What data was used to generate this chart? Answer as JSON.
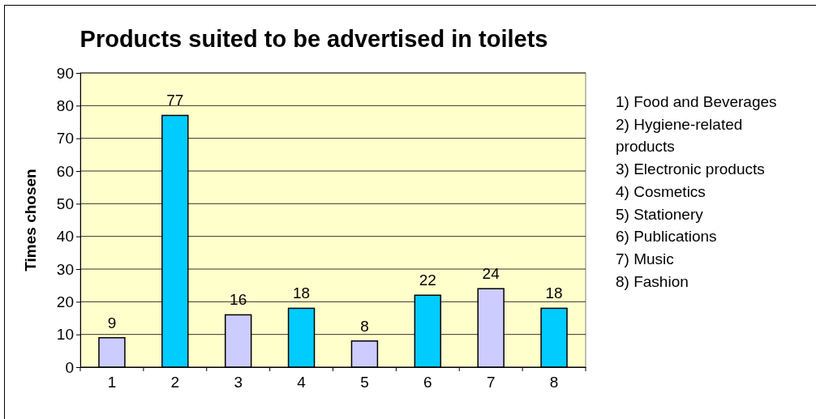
{
  "chart_data": {
    "type": "bar",
    "title": "Products suited to be advertised in toilets",
    "ylabel": "Times chosen",
    "categories": [
      "1",
      "2",
      "3",
      "4",
      "5",
      "6",
      "7",
      "8"
    ],
    "values": [
      9,
      77,
      16,
      18,
      8,
      22,
      24,
      18
    ],
    "colors": [
      "#ccccff",
      "#00ccff",
      "#ccccff",
      "#00ccff",
      "#ccccff",
      "#00ccff",
      "#ccccff",
      "#00ccff"
    ],
    "ylim": [
      0,
      90
    ],
    "yticks": [
      0,
      10,
      20,
      30,
      40,
      50,
      60,
      70,
      80,
      90
    ],
    "grid": "y",
    "data_labels": true,
    "annotations": [
      "1) Food and Beverages",
      "2) Hygiene-related products",
      "3) Electronic products",
      "4) Cosmetics",
      "5) Stationery",
      "6) Publications",
      "7) Music",
      "8) Fashion"
    ]
  }
}
